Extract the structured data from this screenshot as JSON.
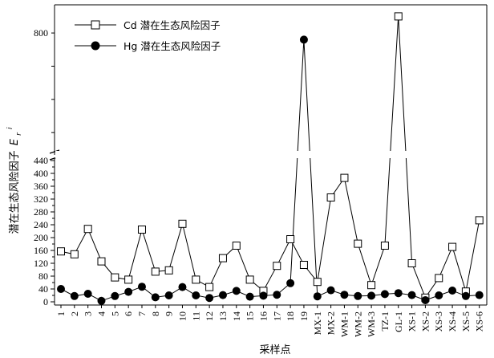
{
  "chart_data": {
    "type": "line",
    "xlabel": "采样点",
    "ylabel": "潜在生态风险因子",
    "ylabel_symbol": "E",
    "ylabel_sub": "r",
    "ylabel_sup": "i",
    "categories": [
      "1",
      "2",
      "3",
      "4",
      "5",
      "6",
      "7",
      "8",
      "9",
      "10",
      "11",
      "12",
      "13",
      "14",
      "15",
      "16",
      "17",
      "18",
      "19",
      "MX-1",
      "MX-2",
      "WM-1",
      "WM-2",
      "WM-3",
      "TZ-1",
      "GL-1",
      "XS-1",
      "XS-2",
      "XS-3",
      "XS-4",
      "XS-5",
      "XS-6"
    ],
    "y_axis": {
      "broken": true,
      "lower_range": [
        0,
        440
      ],
      "upper_range": [
        440,
        880
      ],
      "lower_ticks": [
        0,
        20,
        40,
        60,
        80,
        100,
        120,
        140,
        160,
        180,
        200,
        220,
        240,
        260,
        280,
        300,
        320,
        340,
        360,
        380,
        400,
        420,
        440
      ],
      "lower_tick_labels": [
        "0",
        "40",
        "80",
        "120",
        "160",
        "200",
        "240",
        "280",
        "320",
        "360",
        "400",
        "440"
      ],
      "upper_tick_labels": [
        "800"
      ],
      "upper_tick_values": [
        800
      ]
    },
    "series": [
      {
        "name": "Cd 潜在生态风险因子",
        "marker": "open-square",
        "values": [
          157,
          148,
          227,
          126,
          76,
          69,
          225,
          94,
          98,
          243,
          69,
          46,
          136,
          175,
          69,
          34,
          112,
          195,
          115,
          62,
          325,
          386,
          181,
          52,
          175,
          850,
          120,
          13,
          74,
          171,
          32,
          254
        ]
      },
      {
        "name": "Hg 潜在生态风险因子",
        "marker": "filled-circle",
        "values": [
          40,
          18,
          25,
          3,
          18,
          31,
          47,
          14,
          20,
          46,
          20,
          12,
          21,
          34,
          16,
          19,
          22,
          58,
          780,
          17,
          36,
          22,
          18,
          19,
          24,
          27,
          21,
          5,
          20,
          35,
          18,
          21
        ]
      }
    ],
    "legend": {
      "position": "top-left"
    },
    "grid": false
  }
}
